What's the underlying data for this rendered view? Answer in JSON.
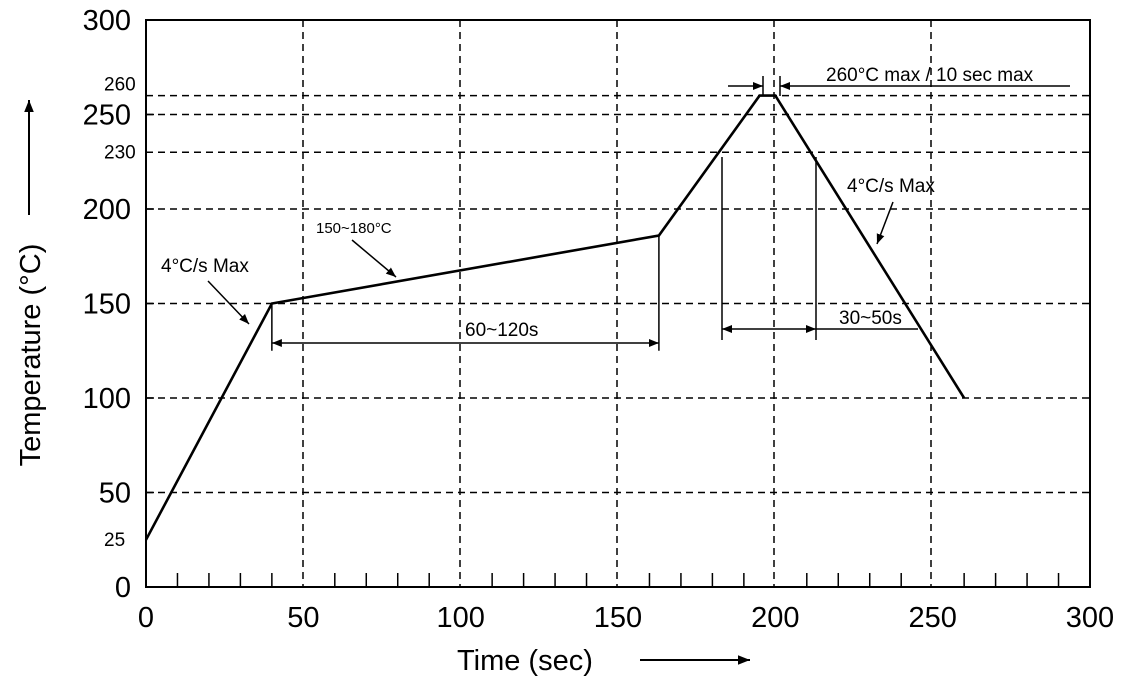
{
  "chart_data": {
    "type": "line",
    "title": "",
    "xlabel": "Time (sec)",
    "ylabel": "Temperature (°C)",
    "xlim": [
      0,
      300
    ],
    "ylim": [
      0,
      300
    ],
    "grid": true,
    "x_ticks": [
      0,
      50,
      100,
      150,
      200,
      250,
      300
    ],
    "y_ticks_major": [
      0,
      50,
      100,
      150,
      200,
      250,
      300
    ],
    "y_ticks_minor_labels": [
      25,
      230,
      260
    ],
    "series": [
      {
        "x": [
          0,
          40,
          163,
          195,
          200,
          260
        ],
        "y": [
          25,
          150,
          186,
          260,
          260,
          100
        ]
      }
    ],
    "annotations": [
      {
        "id": "ramp_up",
        "text": "4°C/s Max"
      },
      {
        "id": "soak_temp",
        "text": "150~180°C"
      },
      {
        "id": "soak_time",
        "text": "60~120s"
      },
      {
        "id": "peak",
        "text": "260°C max / 10 sec max"
      },
      {
        "id": "ramp_down",
        "text": "4°C/s Max"
      },
      {
        "id": "above_230",
        "text": "30~50s"
      }
    ]
  }
}
